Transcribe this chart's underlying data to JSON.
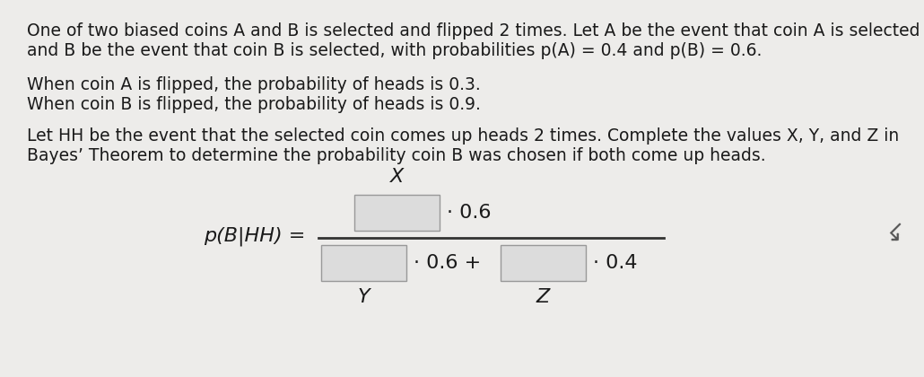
{
  "background_color": "#edecea",
  "text_color": "#1a1a1a",
  "p1_line1": "One of two biased coins A and B is selected and flipped 2 times. Let A be the event that coin A is selected",
  "p1_line2": "and B be the event that coin B is selected, with probabilities p(A) = 0.4 and p(B) = 0.6.",
  "p2_line1": "When coin A is flipped, the probability of heads is 0.3.",
  "p2_line2": "When coin B is flipped, the probability of heads is 0.9.",
  "p3_line1": "Let HH be the event that the selected coin comes up heads 2 times. Complete the values X, Y, and Z in",
  "p3_line2": "Bayes’ Theorem to determine the probability coin B was chosen if both come up heads.",
  "formula_label": "p(B|HH) =",
  "X_label": "X",
  "Y_label": "Y",
  "Z_label": "Z",
  "num_suffix": "· 0.6",
  "den_middle": "· 0.6 +",
  "den_suffix": "· 0.4",
  "box_fill": "#dcdcdc",
  "box_edge": "#999999",
  "font_size_body": 13.5,
  "font_size_formula": 16
}
